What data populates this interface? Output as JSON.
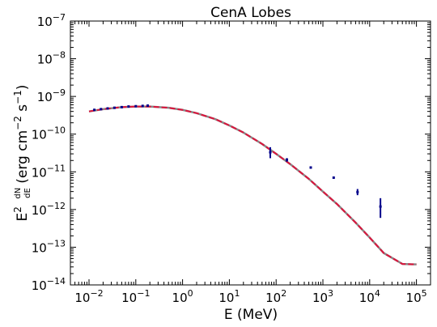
{
  "chart_data": {
    "type": "scatter",
    "title": "CenA Lobes",
    "xlabel": "E (MeV)",
    "ylabel": {
      "prefix": "E",
      "prefix_exp": "2",
      "frac_num": "dN",
      "frac_den": "dE",
      "units_open": " (erg cm",
      "cm_exp": "−2",
      "units_mid": " s",
      "s_exp": "−1",
      "units_close": ")"
    },
    "x_scale": "log",
    "y_scale": "log",
    "xlim": [
      0.004,
      200000
    ],
    "ylim": [
      1e-14,
      1e-07
    ],
    "grid": false,
    "x_ticks": [
      {
        "value": 0.01,
        "base": "10",
        "exp": "−2"
      },
      {
        "value": 0.1,
        "base": "10",
        "exp": "−1"
      },
      {
        "value": 1,
        "base": "10",
        "exp": "0"
      },
      {
        "value": 10,
        "base": "10",
        "exp": "1"
      },
      {
        "value": 100,
        "base": "10",
        "exp": "2"
      },
      {
        "value": 1000,
        "base": "10",
        "exp": "3"
      },
      {
        "value": 10000,
        "base": "10",
        "exp": "4"
      },
      {
        "value": 100000,
        "base": "10",
        "exp": "5"
      }
    ],
    "y_ticks": [
      {
        "value": 1e-14,
        "base": "10",
        "exp": "−14"
      },
      {
        "value": 1e-13,
        "base": "10",
        "exp": "−13"
      },
      {
        "value": 1e-12,
        "base": "10",
        "exp": "−12"
      },
      {
        "value": 1e-11,
        "base": "10",
        "exp": "−11"
      },
      {
        "value": 1e-10,
        "base": "10",
        "exp": "−10"
      },
      {
        "value": 1e-09,
        "base": "10",
        "exp": "−9"
      },
      {
        "value": 1e-08,
        "base": "10",
        "exp": "−8"
      },
      {
        "value": 1e-07,
        "base": "10",
        "exp": "−7"
      }
    ],
    "series": [
      {
        "kind": "errorbars",
        "color": "#00008b",
        "points": [
          {
            "x": 0.013,
            "y": 4.4e-10,
            "ylo": 4.2e-10,
            "yhi": 4.6e-10
          },
          {
            "x": 0.018,
            "y": 4.6e-10,
            "ylo": 4.4e-10,
            "yhi": 4.8e-10
          },
          {
            "x": 0.025,
            "y": 4.8e-10,
            "ylo": 4.6e-10,
            "yhi": 5e-10
          },
          {
            "x": 0.035,
            "y": 5e-10,
            "ylo": 4.8e-10,
            "yhi": 5.2e-10
          },
          {
            "x": 0.05,
            "y": 5.2e-10,
            "ylo": 5e-10,
            "yhi": 5.4e-10
          },
          {
            "x": 0.07,
            "y": 5.4e-10,
            "ylo": 5.2e-10,
            "yhi": 5.6e-10
          },
          {
            "x": 0.1,
            "y": 5.5e-10,
            "ylo": 5.3e-10,
            "yhi": 5.7e-10
          },
          {
            "x": 0.14,
            "y": 5.6e-10,
            "ylo": 5.4e-10,
            "yhi": 5.8e-10
          },
          {
            "x": 0.18,
            "y": 5.7e-10,
            "ylo": 5.5e-10,
            "yhi": 5.9e-10
          },
          {
            "x": 75,
            "y": 3.3e-11,
            "ylo": 2.3e-11,
            "yhi": 4.5e-11
          },
          {
            "x": 170,
            "y": 2.1e-11,
            "ylo": 1.85e-11,
            "yhi": 2.3e-11
          },
          {
            "x": 550,
            "y": 1.3e-11,
            "ylo": 1.22e-11,
            "yhi": 1.38e-11
          },
          {
            "x": 1700,
            "y": 7e-12,
            "ylo": 6.5e-12,
            "yhi": 7.5e-12
          },
          {
            "x": 5500,
            "y": 2.9e-12,
            "ylo": 2.4e-12,
            "yhi": 3.5e-12
          },
          {
            "x": 17000,
            "y": 1.2e-12,
            "ylo": 6e-13,
            "yhi": 2e-12
          }
        ]
      },
      {
        "kind": "curve",
        "style": "dashed",
        "color": "#dc143c",
        "underlay_color": "#888888",
        "x": [
          0.01,
          0.02,
          0.05,
          0.1,
          0.2,
          0.5,
          1,
          2,
          5,
          10,
          20,
          50,
          100,
          200,
          500,
          1000,
          2000,
          5000,
          10000,
          20000,
          50000,
          100000
        ],
        "y": [
          4e-10,
          4.6e-10,
          5.2e-10,
          5.4e-10,
          5.4e-10,
          5e-10,
          4.4e-10,
          3.6e-10,
          2.5e-10,
          1.7e-10,
          1.1e-10,
          5.5e-11,
          3e-11,
          1.6e-11,
          6.5e-12,
          3e-12,
          1.4e-12,
          4.5e-13,
          1.8e-13,
          7e-14,
          3.6e-14,
          3.5e-14
        ]
      }
    ]
  }
}
